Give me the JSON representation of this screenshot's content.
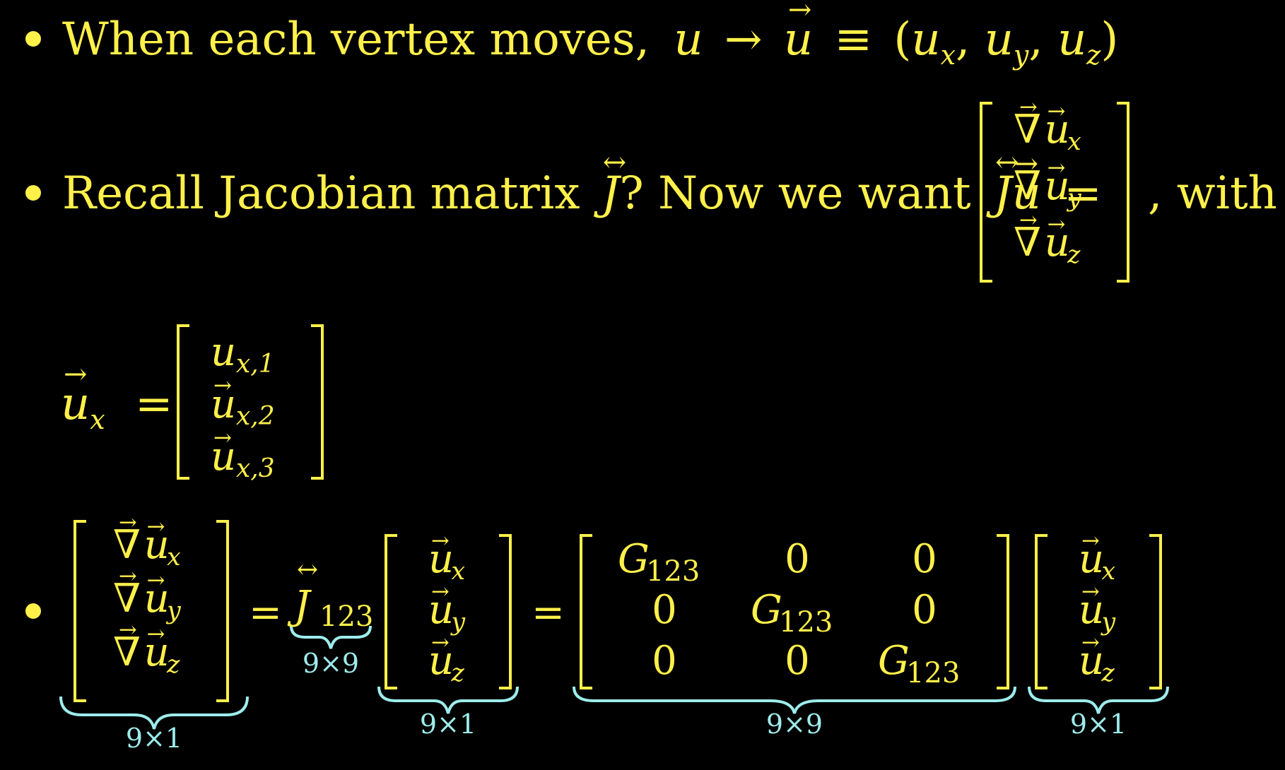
{
  "colors": {
    "background": "#000000",
    "text": "#fff04a",
    "annotation": "#9eecec"
  },
  "line1": {
    "text": "When each vertex moves,",
    "math": {
      "u": "u",
      "arrow": "→",
      "vec_u": "u",
      "equiv": "≡",
      "lparen": "(",
      "ux": "u",
      "sx": "x",
      "comma1": ",",
      "uy": "u",
      "sy": "y",
      "comma2": ",",
      "uz": "u",
      "sz": "z",
      "rparen": ")"
    }
  },
  "line2": {
    "text_a": "Recall Jacobian matrix",
    "J1": "J",
    "text_b": "? Now we want",
    "J2": "J",
    "u": "u",
    "eq": "=",
    "rows": [
      {
        "base": "u",
        "sub": "x"
      },
      {
        "base": "u",
        "sub": "y"
      },
      {
        "base": "u",
        "sub": "z"
      }
    ],
    "text_c": ", with"
  },
  "line3": {
    "lhs_base": "u",
    "lhs_sub": "x",
    "eq": "=",
    "rows": [
      {
        "base": "u",
        "sub": "x,1"
      },
      {
        "base": "u",
        "sub": "x,2"
      },
      {
        "base": "u",
        "sub": "x,3"
      }
    ]
  },
  "line4": {
    "grad_rows": [
      {
        "base": "u",
        "sub": "x"
      },
      {
        "base": "u",
        "sub": "y"
      },
      {
        "base": "u",
        "sub": "z"
      }
    ],
    "eq1": "=",
    "J": "J",
    "J_sub": "123",
    "vec_rows": [
      {
        "base": "u",
        "sub": "x"
      },
      {
        "base": "u",
        "sub": "y"
      },
      {
        "base": "u",
        "sub": "z"
      }
    ],
    "eq2": "=",
    "matrix": [
      [
        "G",
        "0",
        "0"
      ],
      [
        "0",
        "G",
        "0"
      ],
      [
        "0",
        "0",
        "G"
      ]
    ],
    "G_sub": "123",
    "vec2_rows": [
      {
        "base": "u",
        "sub": "x"
      },
      {
        "base": "u",
        "sub": "y"
      },
      {
        "base": "u",
        "sub": "z"
      }
    ],
    "annotations": {
      "grad": "9×1",
      "J": "9×9",
      "vec": "9×1",
      "matrix": "9×9",
      "vec2": "9×1"
    }
  }
}
